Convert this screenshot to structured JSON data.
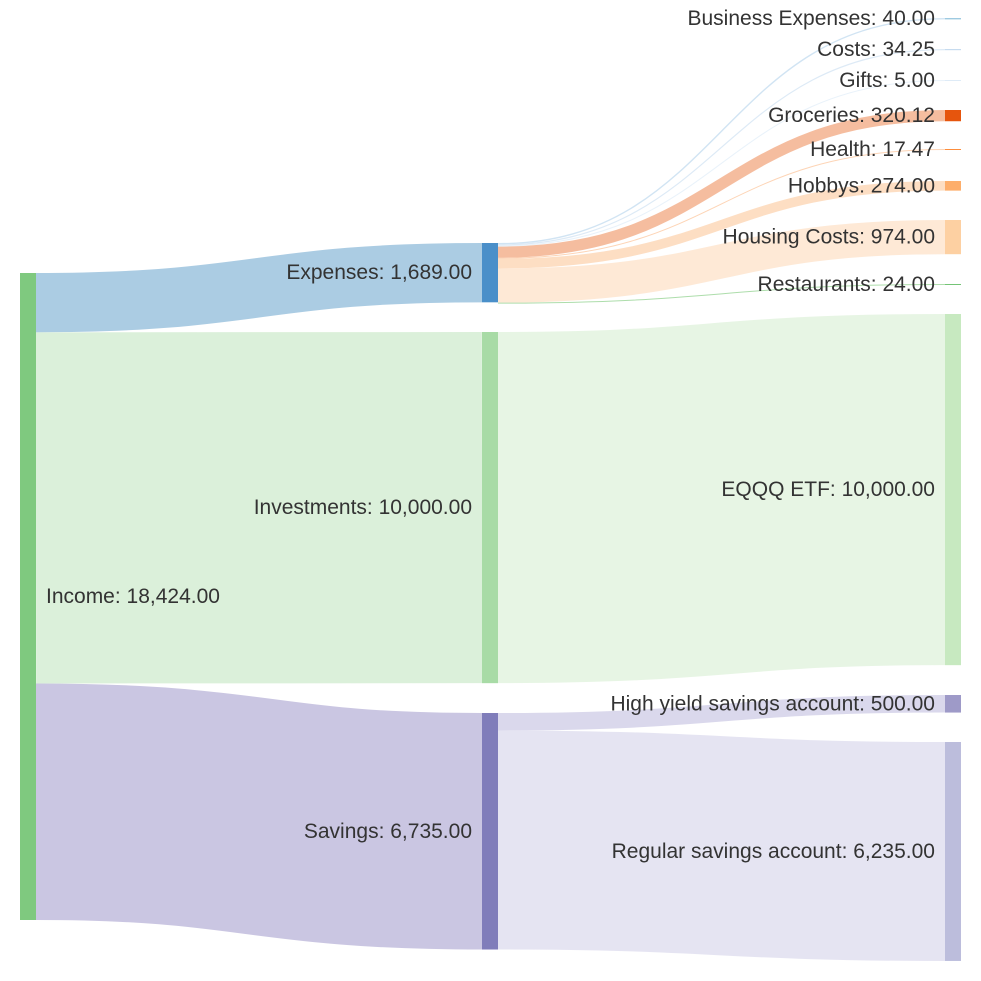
{
  "chart_data": {
    "type": "sankey",
    "nodes": [
      {
        "id": "income",
        "label": "Income: 18,424.00",
        "name": "Income",
        "value": 18424.0,
        "color": "#7fc97f"
      },
      {
        "id": "expenses",
        "label": "Expenses: 1,689.00",
        "name": "Expenses",
        "value": 1689.0,
        "color": "#4a8fc9"
      },
      {
        "id": "investments",
        "label": "Investments: 10,000.00",
        "name": "Investments",
        "value": 10000.0,
        "color": "#a8dba6"
      },
      {
        "id": "savings",
        "label": "Savings: 6,735.00",
        "name": "Savings",
        "value": 6735.0,
        "color": "#807dba"
      },
      {
        "id": "business_expenses",
        "label": "Business Expenses: 40.00",
        "name": "Business Expenses",
        "value": 40.0,
        "color": "#9ecae1"
      },
      {
        "id": "costs",
        "label": "Costs: 34.25",
        "name": "Costs",
        "value": 34.25,
        "color": "#c6dbef"
      },
      {
        "id": "gifts",
        "label": "Gifts: 5.00",
        "name": "Gifts",
        "value": 5.0,
        "color": "#deebf7"
      },
      {
        "id": "groceries",
        "label": "Groceries: 320.12",
        "name": "Groceries",
        "value": 320.12,
        "color": "#e6550d"
      },
      {
        "id": "health",
        "label": "Health: 17.47",
        "name": "Health",
        "value": 17.47,
        "color": "#fd8d3c"
      },
      {
        "id": "hobbys",
        "label": "Hobbys: 274.00",
        "name": "Hobbys",
        "value": 274.0,
        "color": "#fdae6b"
      },
      {
        "id": "housing_costs",
        "label": "Housing Costs: 974.00",
        "name": "Housing Costs",
        "value": 974.0,
        "color": "#fdd0a2"
      },
      {
        "id": "restaurants",
        "label": "Restaurants: 24.00",
        "name": "Restaurants",
        "value": 24.0,
        "color": "#74c476"
      },
      {
        "id": "eqqq_etf",
        "label": "EQQQ ETF: 10,000.00",
        "name": "EQQQ ETF",
        "value": 10000.0,
        "color": "#c7e9c0"
      },
      {
        "id": "high_yield",
        "label": "High yield savings account: 500.00",
        "name": "High yield savings account",
        "value": 500.0,
        "color": "#9e9ac8"
      },
      {
        "id": "regular_savings",
        "label": "Regular savings account: 6,235.00",
        "name": "Regular savings account",
        "value": 6235.0,
        "color": "#bcbddc"
      }
    ],
    "links": [
      {
        "source": "income",
        "target": "expenses",
        "value": 1689.0,
        "color": "#a6c9e2"
      },
      {
        "source": "income",
        "target": "investments",
        "value": 10000.0,
        "color": "#d9efd8"
      },
      {
        "source": "income",
        "target": "savings",
        "value": 6735.0,
        "color": "#c7c3e0"
      },
      {
        "source": "expenses",
        "target": "business_expenses",
        "value": 40.0,
        "color": "#cfe3f2"
      },
      {
        "source": "expenses",
        "target": "costs",
        "value": 34.25,
        "color": "#dbe9f5"
      },
      {
        "source": "expenses",
        "target": "gifts",
        "value": 5.0,
        "color": "#e8f1fa"
      },
      {
        "source": "expenses",
        "target": "groceries",
        "value": 320.12,
        "color": "#f4b99a"
      },
      {
        "source": "expenses",
        "target": "health",
        "value": 17.47,
        "color": "#fdd2b1"
      },
      {
        "source": "expenses",
        "target": "hobbys",
        "value": 274.0,
        "color": "#fddcc0"
      },
      {
        "source": "expenses",
        "target": "housing_costs",
        "value": 974.0,
        "color": "#fee8d4"
      },
      {
        "source": "expenses",
        "target": "restaurants",
        "value": 24.0,
        "color": "#a9dba6"
      },
      {
        "source": "investments",
        "target": "eqqq_etf",
        "value": 10000.0,
        "color": "#e6f4e3"
      },
      {
        "source": "savings",
        "target": "high_yield",
        "value": 500.0,
        "color": "#d8d6eb"
      },
      {
        "source": "savings",
        "target": "regular_savings",
        "value": 6235.0,
        "color": "#e4e3f1"
      }
    ]
  }
}
